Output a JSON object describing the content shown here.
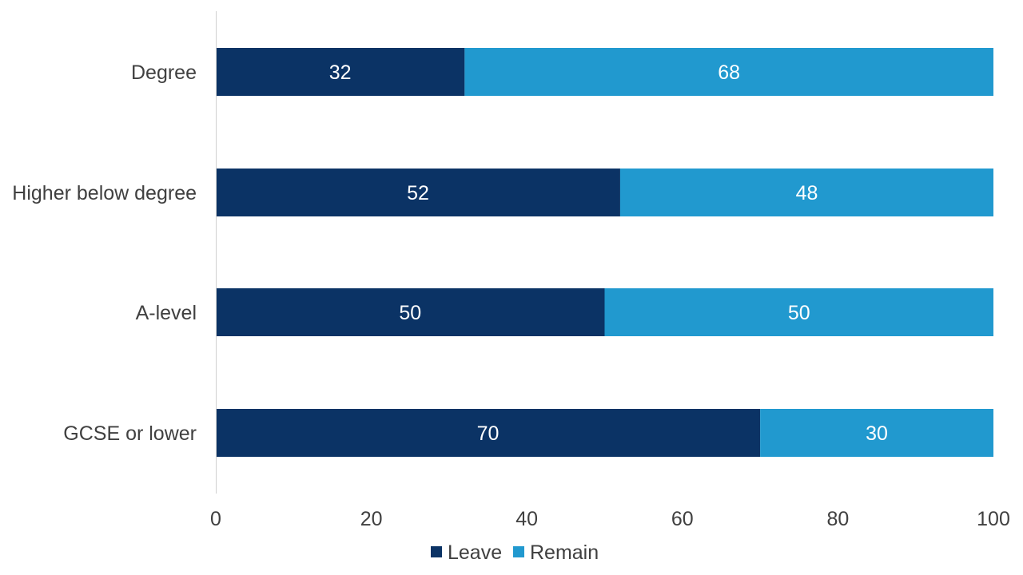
{
  "chart_data": {
    "type": "bar",
    "orientation": "horizontal",
    "stacked": true,
    "categories": [
      "Degree",
      "Higher below degree",
      "A-level",
      "GCSE or lower"
    ],
    "series": [
      {
        "name": "Leave",
        "values": [
          32,
          52,
          50,
          70
        ],
        "color": "#0b3365"
      },
      {
        "name": "Remain",
        "values": [
          68,
          48,
          50,
          30
        ],
        "color": "#2199cf"
      }
    ],
    "xlim": [
      0,
      100
    ],
    "xticks": [
      0,
      20,
      40,
      60,
      80,
      100
    ],
    "title": "",
    "xlabel": "",
    "ylabel": "",
    "grid": false,
    "legend_position": "bottom"
  }
}
